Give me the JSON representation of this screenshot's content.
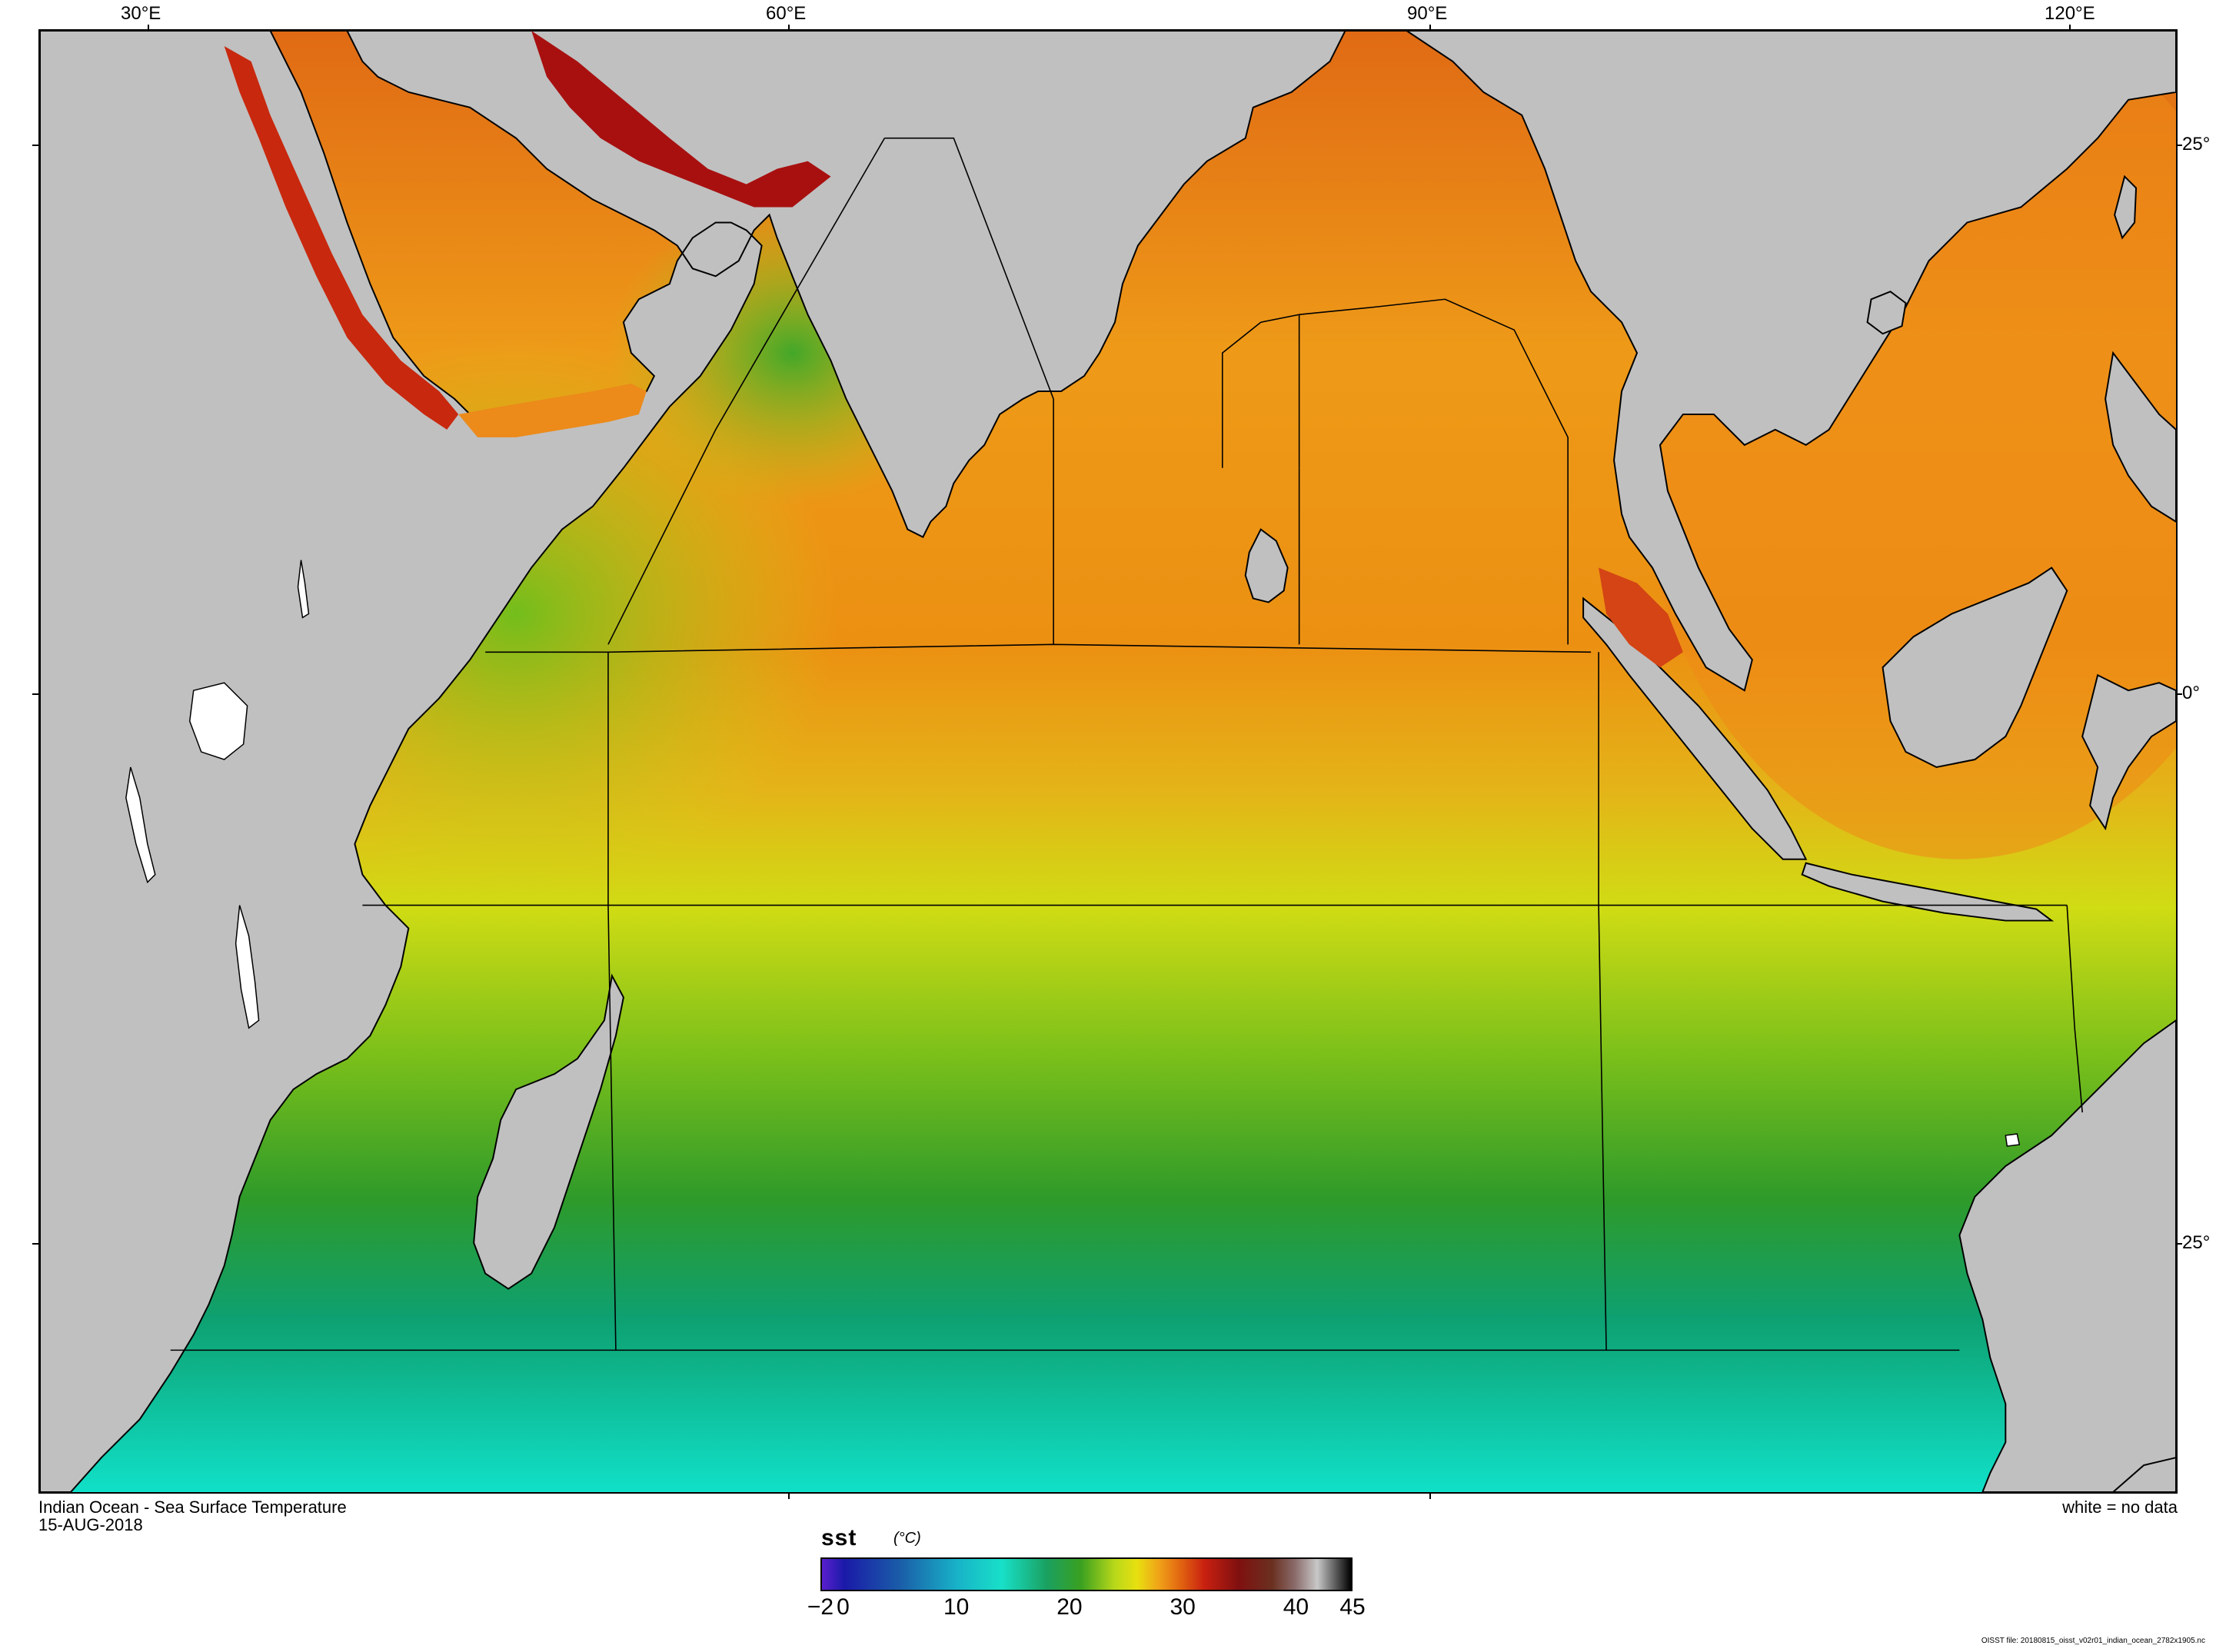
{
  "map": {
    "title": "Indian Ocean - Sea Surface Temperature",
    "date": "15-AUG-2018",
    "no_data_note": "white = no data",
    "file_note": "OISST file: 20180815_oisst_v02r01_indian_ocean_2782x1905.nc",
    "projection": "equirectangular",
    "lon_range": [
      20,
      123
    ],
    "lat_range": [
      -37,
      30
    ],
    "land_color": "#c0c0c0",
    "no_data_color": "#ffffff",
    "lon_ticks": [
      {
        "label": "30°E",
        "value": 30
      },
      {
        "label": "60°E",
        "value": 60
      },
      {
        "label": "90°E",
        "value": 90
      },
      {
        "label": "120°E",
        "value": 120
      }
    ],
    "lat_ticks": [
      {
        "label": "25°",
        "value": 25
      },
      {
        "label": "0°",
        "value": 0
      },
      {
        "label": "25°",
        "value": -25
      }
    ]
  },
  "colorbar": {
    "variable": "sst",
    "unit": "(°C)",
    "min": -2,
    "max": 45,
    "ticks": [
      {
        "label": "−2",
        "value": -2
      },
      {
        "label": "0",
        "value": 0
      },
      {
        "label": "10",
        "value": 10
      },
      {
        "label": "20",
        "value": 20
      },
      {
        "label": "30",
        "value": 30
      },
      {
        "label": "40",
        "value": 40
      },
      {
        "label": "45",
        "value": 45
      }
    ],
    "stops": [
      {
        "value": -2,
        "color": "#5a1fcf"
      },
      {
        "value": 0,
        "color": "#1a1aa8"
      },
      {
        "value": 5,
        "color": "#1a5ea8"
      },
      {
        "value": 10,
        "color": "#18b2c8"
      },
      {
        "value": 14,
        "color": "#18e0c8"
      },
      {
        "value": 18,
        "color": "#1aa060"
      },
      {
        "value": 21,
        "color": "#3aa020"
      },
      {
        "value": 24,
        "color": "#b8d81a"
      },
      {
        "value": 26,
        "color": "#e8e010"
      },
      {
        "value": 28,
        "color": "#f0a018"
      },
      {
        "value": 30,
        "color": "#e06010"
      },
      {
        "value": 32,
        "color": "#c82010"
      },
      {
        "value": 35,
        "color": "#801010"
      },
      {
        "value": 38,
        "color": "#6a3020"
      },
      {
        "value": 40,
        "color": "#8a6a6a"
      },
      {
        "value": 42,
        "color": "#c8c8c8"
      },
      {
        "value": 45,
        "color": "#000000"
      }
    ]
  }
}
